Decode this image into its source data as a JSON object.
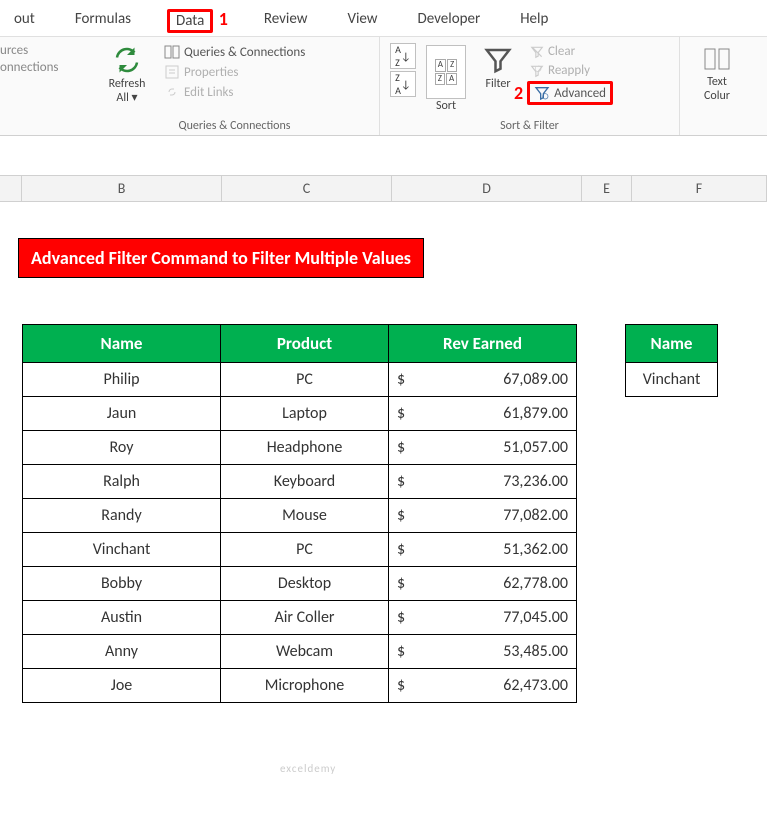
{
  "ribbon": {
    "tabs": [
      "out",
      "Formulas",
      "Data",
      "Review",
      "View",
      "Developer",
      "Help"
    ],
    "active_tab": "Data",
    "callout1": "1",
    "callout2": "2",
    "group1_left": {
      "line1": "urces",
      "line2": "onnections"
    },
    "refresh_label": "Refresh\nAll ▾",
    "queries_label": "Queries & Connections",
    "properties_label": "Properties",
    "editlinks_label": "Edit Links",
    "group1_title": "Queries & Connections",
    "sort_az": "A→Z",
    "sort_za": "Z→A",
    "sort_label": "Sort",
    "filter_label": "Filter",
    "clear_label": "Clear",
    "reapply_label": "Reapply",
    "advanced_label": "Advanced",
    "group2_title": "Sort & Filter",
    "text_col": "Text\nColur"
  },
  "columns": [
    "B",
    "C",
    "D",
    "E",
    "F"
  ],
  "title": "Advanced Filter Command to Filter Multiple Values",
  "table": {
    "headers": [
      "Name",
      "Product",
      "Rev Earned"
    ],
    "rows": [
      {
        "name": "Philip",
        "product": "PC",
        "rev": "67,089.00"
      },
      {
        "name": "Jaun",
        "product": "Laptop",
        "rev": "61,879.00"
      },
      {
        "name": "Roy",
        "product": "Headphone",
        "rev": "51,057.00"
      },
      {
        "name": "Ralph",
        "product": "Keyboard",
        "rev": "73,236.00"
      },
      {
        "name": "Randy",
        "product": "Mouse",
        "rev": "77,082.00"
      },
      {
        "name": "Vinchant",
        "product": "PC",
        "rev": "51,362.00"
      },
      {
        "name": "Bobby",
        "product": "Desktop",
        "rev": "62,778.00"
      },
      {
        "name": "Austin",
        "product": "Air Coller",
        "rev": "77,045.00"
      },
      {
        "name": "Anny",
        "product": "Webcam",
        "rev": "53,485.00"
      },
      {
        "name": "Joe",
        "product": "Microphone",
        "rev": "62,473.00"
      }
    ],
    "currency": "$"
  },
  "criteria": {
    "header": "Name",
    "value": "Vinchant"
  },
  "watermark": "exceldemy"
}
